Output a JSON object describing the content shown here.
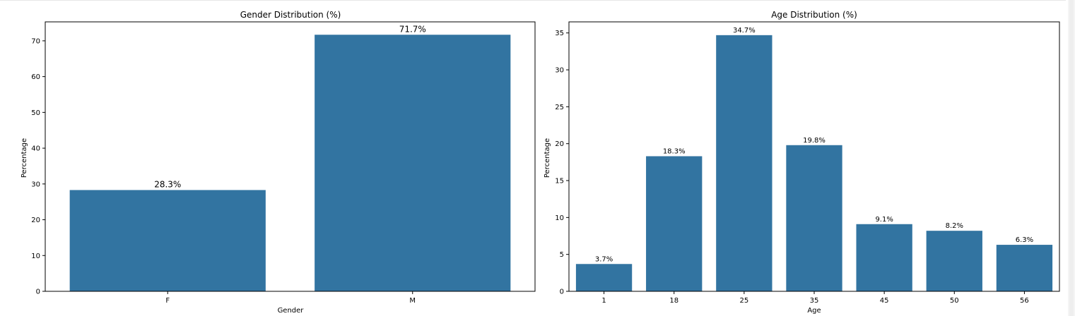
{
  "chart_data": [
    {
      "type": "bar",
      "title": "Gender Distribution (%)",
      "xlabel": "Gender",
      "ylabel": "Percentage",
      "categories": [
        "F",
        "M"
      ],
      "values": [
        28.3,
        71.7
      ],
      "value_labels": [
        "28.3%",
        "71.7%"
      ],
      "yticks": [
        0,
        10,
        20,
        30,
        40,
        50,
        60,
        70
      ],
      "ylim": [
        0,
        75.3
      ],
      "bar_color": "#3274a1",
      "grid": false,
      "legend": "none"
    },
    {
      "type": "bar",
      "title": "Age Distribution (%)",
      "xlabel": "Age",
      "ylabel": "Percentage",
      "categories": [
        "1",
        "18",
        "25",
        "35",
        "45",
        "50",
        "56"
      ],
      "values": [
        3.7,
        18.3,
        34.7,
        19.8,
        9.1,
        8.2,
        6.3
      ],
      "value_labels": [
        "3.7%",
        "18.3%",
        "34.7%",
        "19.8%",
        "9.1%",
        "8.2%",
        "6.3%"
      ],
      "yticks": [
        0,
        5,
        10,
        15,
        20,
        25,
        30,
        35
      ],
      "ylim": [
        0,
        36.5
      ],
      "bar_color": "#3274a1",
      "grid": false,
      "legend": "none"
    }
  ]
}
